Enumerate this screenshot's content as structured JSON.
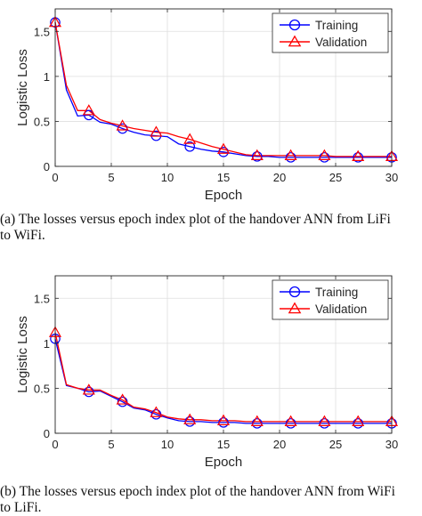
{
  "chart_data": [
    {
      "type": "line",
      "panel": "a",
      "xlabel": "Epoch",
      "ylabel": "Logistic Loss",
      "xlim": [
        0,
        30
      ],
      "ylim": [
        0,
        1.75
      ],
      "xticks": [
        0,
        5,
        10,
        15,
        20,
        25,
        30
      ],
      "yticks": [
        0,
        0.5,
        1,
        1.5
      ],
      "ytick_labels": [
        "0",
        "0.5",
        "1",
        "1.5"
      ],
      "grid": true,
      "legend_position": "top-right",
      "series": [
        {
          "name": "Training",
          "color": "#0000ff",
          "marker": "circle",
          "x": [
            0,
            1,
            2,
            3,
            4,
            5,
            6,
            7,
            8,
            9,
            10,
            11,
            12,
            13,
            14,
            15,
            16,
            17,
            18,
            19,
            20,
            21,
            22,
            23,
            24,
            25,
            26,
            27,
            28,
            29,
            30
          ],
          "y": [
            1.6,
            0.85,
            0.56,
            0.57,
            0.49,
            0.47,
            0.42,
            0.38,
            0.35,
            0.34,
            0.33,
            0.25,
            0.22,
            0.19,
            0.17,
            0.16,
            0.14,
            0.12,
            0.11,
            0.11,
            0.1,
            0.1,
            0.1,
            0.1,
            0.1,
            0.1,
            0.1,
            0.1,
            0.1,
            0.1,
            0.1
          ],
          "marker_x": [
            0,
            3,
            6,
            9,
            12,
            15,
            18,
            21,
            24,
            27,
            30
          ]
        },
        {
          "name": "Validation",
          "color": "#ff0000",
          "marker": "triangle",
          "x": [
            0,
            1,
            2,
            3,
            4,
            5,
            6,
            7,
            8,
            9,
            10,
            11,
            12,
            13,
            14,
            15,
            16,
            17,
            18,
            19,
            20,
            21,
            22,
            23,
            24,
            25,
            26,
            27,
            28,
            29,
            30
          ],
          "y": [
            1.6,
            0.9,
            0.62,
            0.62,
            0.52,
            0.48,
            0.45,
            0.42,
            0.4,
            0.38,
            0.37,
            0.33,
            0.3,
            0.26,
            0.22,
            0.19,
            0.16,
            0.13,
            0.12,
            0.12,
            0.12,
            0.12,
            0.12,
            0.12,
            0.12,
            0.11,
            0.11,
            0.11,
            0.11,
            0.11,
            0.11
          ],
          "marker_x": [
            0,
            3,
            6,
            9,
            12,
            15,
            18,
            21,
            24,
            27,
            30
          ]
        }
      ]
    },
    {
      "type": "line",
      "panel": "b",
      "xlabel": "Epoch",
      "ylabel": "Logistic Loss",
      "xlim": [
        0,
        30
      ],
      "ylim": [
        0,
        1.75
      ],
      "xticks": [
        0,
        5,
        10,
        15,
        20,
        25,
        30
      ],
      "yticks": [
        0,
        0.5,
        1,
        1.5
      ],
      "ytick_labels": [
        "0",
        "0.5",
        "1",
        "1.5"
      ],
      "grid": true,
      "legend_position": "top-right",
      "series": [
        {
          "name": "Training",
          "color": "#0000ff",
          "marker": "circle",
          "x": [
            0,
            1,
            2,
            3,
            4,
            5,
            6,
            7,
            8,
            9,
            10,
            11,
            12,
            13,
            14,
            15,
            16,
            17,
            18,
            19,
            20,
            21,
            22,
            23,
            24,
            25,
            26,
            27,
            28,
            29,
            30
          ],
          "y": [
            1.05,
            0.53,
            0.5,
            0.46,
            0.47,
            0.41,
            0.35,
            0.28,
            0.26,
            0.21,
            0.17,
            0.14,
            0.13,
            0.13,
            0.12,
            0.12,
            0.12,
            0.11,
            0.11,
            0.11,
            0.11,
            0.11,
            0.11,
            0.11,
            0.11,
            0.11,
            0.11,
            0.11,
            0.11,
            0.11,
            0.11
          ],
          "marker_x": [
            0,
            3,
            6,
            9,
            12,
            15,
            18,
            21,
            24,
            27,
            30
          ]
        },
        {
          "name": "Validation",
          "color": "#ff0000",
          "marker": "triangle",
          "x": [
            0,
            1,
            2,
            3,
            4,
            5,
            6,
            7,
            8,
            9,
            10,
            11,
            12,
            13,
            14,
            15,
            16,
            17,
            18,
            19,
            20,
            21,
            22,
            23,
            24,
            25,
            26,
            27,
            28,
            29,
            30
          ],
          "y": [
            1.12,
            0.54,
            0.5,
            0.48,
            0.48,
            0.42,
            0.37,
            0.29,
            0.27,
            0.23,
            0.18,
            0.16,
            0.15,
            0.15,
            0.14,
            0.14,
            0.14,
            0.13,
            0.13,
            0.13,
            0.13,
            0.13,
            0.13,
            0.13,
            0.13,
            0.13,
            0.13,
            0.13,
            0.13,
            0.13,
            0.13
          ],
          "marker_x": [
            0,
            3,
            6,
            9,
            12,
            15,
            18,
            21,
            24,
            27,
            30
          ]
        }
      ]
    }
  ],
  "captions": {
    "a": {
      "line1": "(a) The losses versus epoch index plot of the handover ANN from LiFi",
      "line2": "to WiFi."
    },
    "b": {
      "line1": "(b) The losses versus epoch index plot of the handover ANN from WiFi",
      "line2": "to LiFi."
    }
  }
}
